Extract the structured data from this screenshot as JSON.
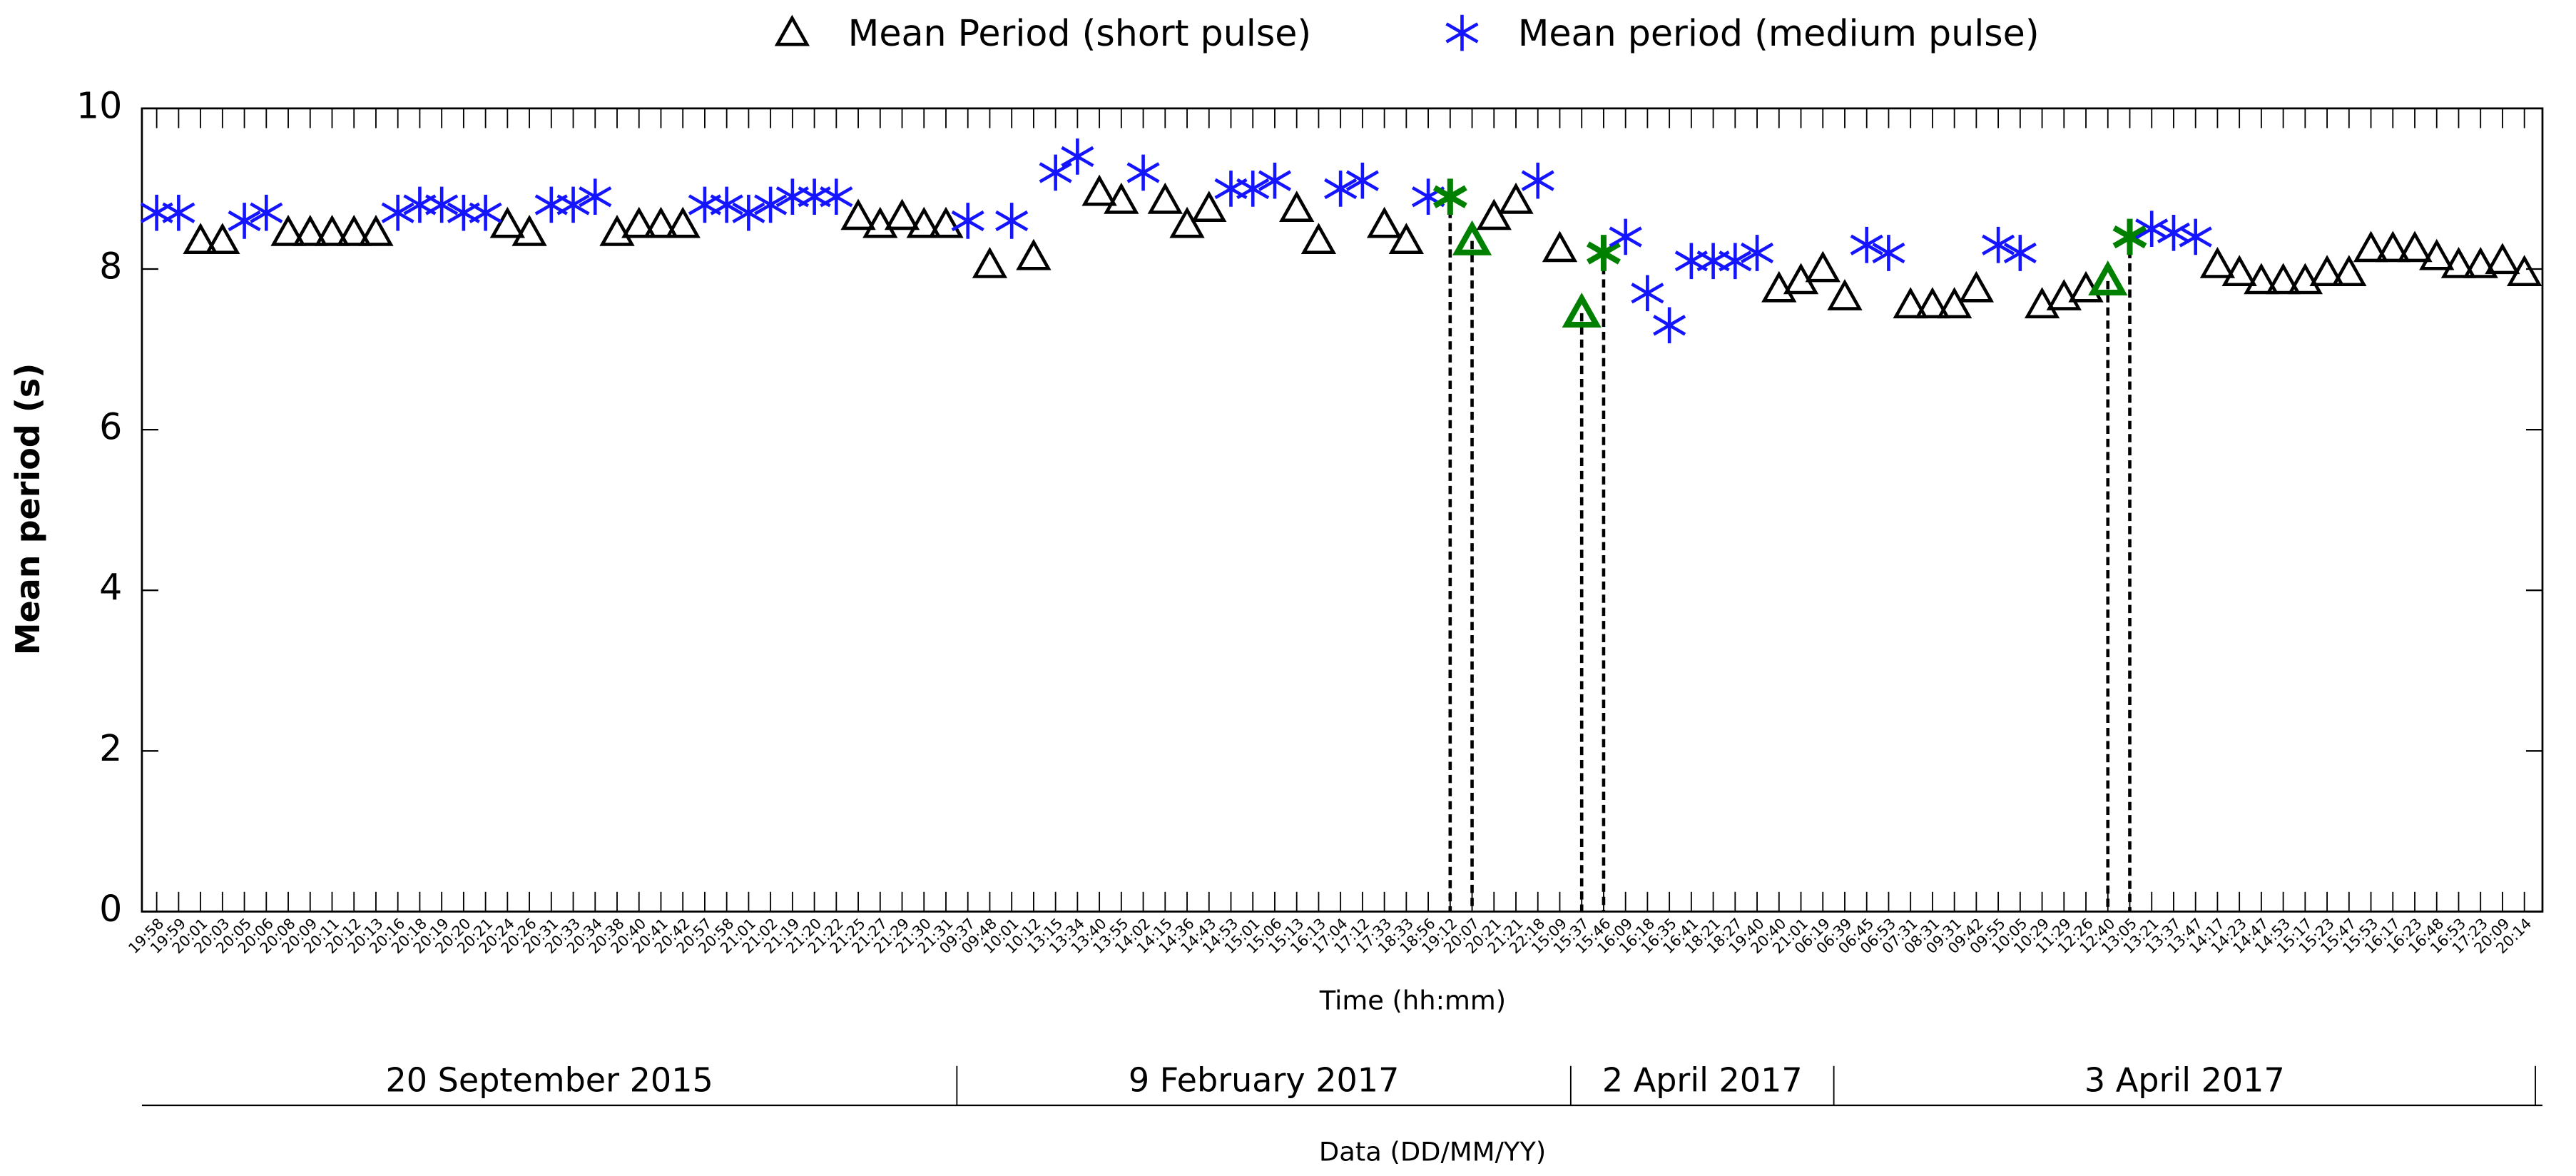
{
  "chart_data": {
    "type": "scatter",
    "x_label": "Time (hh:mm)",
    "y_label": "Mean period (s)",
    "date_axis_label": "Data (DD/MM/YY)",
    "categories": [
      "19:58",
      "19:59",
      "20:01",
      "20:03",
      "20:05",
      "20:06",
      "20:08",
      "20:09",
      "20:11",
      "20:12",
      "20:13",
      "20:16",
      "20:18",
      "20:19",
      "20:20",
      "20:21",
      "20:24",
      "20:26",
      "20:31",
      "20:33",
      "20:34",
      "20:38",
      "20:40",
      "20:41",
      "20:42",
      "20:57",
      "20:58",
      "21:01",
      "21:02",
      "21:19",
      "21:20",
      "21:22",
      "21:25",
      "21:27",
      "21:29",
      "21:30",
      "21:31",
      "09:37",
      "09:48",
      "10:01",
      "10:12",
      "13:15",
      "13:34",
      "13:40",
      "13:55",
      "14:02",
      "14:15",
      "14:36",
      "14:43",
      "14:53",
      "15:01",
      "15:06",
      "15:13",
      "16:13",
      "17:04",
      "17:12",
      "17:33",
      "18:33",
      "18:56",
      "19:12",
      "20:07",
      "20:21",
      "21:21",
      "22:18",
      "15:09",
      "15:37",
      "15:46",
      "16:09",
      "16:18",
      "16:35",
      "16:41",
      "18:21",
      "18:27",
      "19:40",
      "20:40",
      "21:01",
      "06:19",
      "06:39",
      "06:45",
      "06:53",
      "07:31",
      "08:31",
      "09:31",
      "09:42",
      "09:55",
      "10:05",
      "10:29",
      "11:29",
      "12:26",
      "12:40",
      "13:05",
      "13:21",
      "13:37",
      "13:47",
      "14:17",
      "14:23",
      "14:47",
      "14:53",
      "15:17",
      "15:23",
      "15:47",
      "15:53",
      "16:17",
      "16:23",
      "16:48",
      "16:53",
      "17:23",
      "20:09",
      "20:14"
    ],
    "series": [
      {
        "name": "Mean Period (short pulse)",
        "color": "#000000",
        "marker": "triangle",
        "values": [
          null,
          null,
          8.35,
          8.35,
          null,
          null,
          8.45,
          8.45,
          8.45,
          8.45,
          8.45,
          null,
          null,
          null,
          null,
          null,
          8.55,
          8.45,
          null,
          null,
          null,
          8.45,
          8.55,
          8.55,
          8.55,
          null,
          null,
          null,
          null,
          null,
          null,
          null,
          8.65,
          8.55,
          8.65,
          8.55,
          8.55,
          null,
          8.05,
          null,
          8.15,
          null,
          null,
          8.95,
          8.85,
          null,
          8.85,
          8.55,
          8.75,
          null,
          null,
          null,
          8.75,
          8.35,
          null,
          null,
          8.55,
          8.35,
          null,
          null,
          8.35,
          8.65,
          8.85,
          null,
          8.25,
          7.45,
          null,
          null,
          null,
          null,
          null,
          null,
          null,
          null,
          7.75,
          7.85,
          8.0,
          7.65,
          null,
          null,
          7.55,
          7.55,
          7.55,
          7.75,
          null,
          null,
          7.55,
          7.65,
          7.75,
          7.85,
          null,
          null,
          null,
          null,
          8.05,
          7.95,
          7.85,
          7.85,
          7.85,
          7.95,
          7.95,
          8.25,
          8.25,
          8.25,
          8.15,
          8.05,
          8.05,
          8.1,
          7.95
        ]
      },
      {
        "name": "Mean period (medium pulse)",
        "color": "#1414ff",
        "marker": "star",
        "values": [
          8.7,
          8.7,
          null,
          null,
          8.6,
          8.7,
          null,
          null,
          null,
          null,
          null,
          8.7,
          8.8,
          8.8,
          8.7,
          8.7,
          null,
          null,
          8.8,
          8.8,
          8.9,
          null,
          null,
          null,
          null,
          8.8,
          8.8,
          8.7,
          8.8,
          8.9,
          8.9,
          8.9,
          null,
          null,
          null,
          null,
          null,
          8.6,
          null,
          8.6,
          null,
          9.2,
          9.4,
          null,
          null,
          9.2,
          null,
          null,
          null,
          9.0,
          9.0,
          9.1,
          null,
          null,
          9.0,
          9.1,
          null,
          null,
          8.9,
          8.9,
          null,
          null,
          null,
          9.1,
          null,
          null,
          8.2,
          8.4,
          7.7,
          7.3,
          8.1,
          8.1,
          8.1,
          8.2,
          null,
          null,
          null,
          null,
          8.3,
          8.2,
          null,
          null,
          null,
          null,
          8.3,
          8.2,
          null,
          null,
          null,
          null,
          8.4,
          8.5,
          8.45,
          8.4,
          null,
          null,
          null,
          null,
          null,
          null,
          null,
          null,
          null,
          null,
          null,
          null,
          null,
          null,
          null
        ]
      }
    ],
    "highlight": {
      "color": "#008000",
      "indices": [
        59,
        60,
        65,
        66,
        89,
        90
      ]
    },
    "date_groups": [
      {
        "label": "20 September 2015",
        "first": 0,
        "last": 36
      },
      {
        "label": "9 February 2017",
        "first": 37,
        "last": 64
      },
      {
        "label": "2 April 2017",
        "first": 65,
        "last": 76
      },
      {
        "label": "3 April 2017",
        "first": 77,
        "last": 108
      }
    ],
    "ylim": [
      0,
      10
    ],
    "yticks": [
      0,
      2,
      4,
      6,
      8,
      10
    ],
    "grid": false,
    "legend": "top"
  }
}
